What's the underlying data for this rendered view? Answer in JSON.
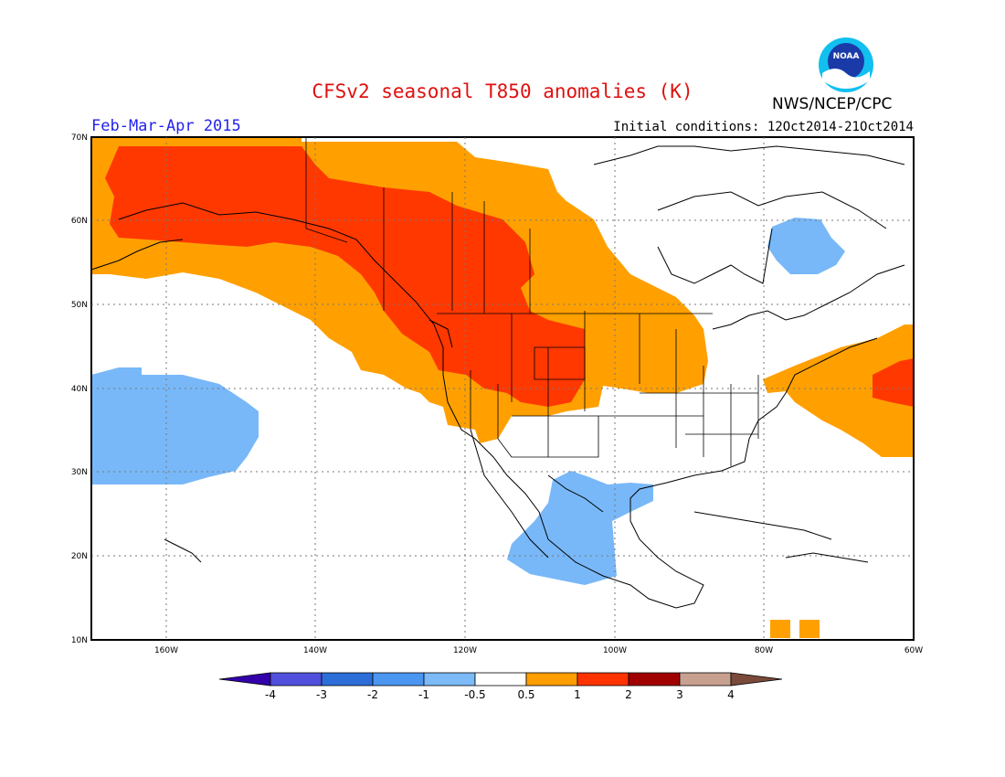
{
  "title": "CFSv2 seasonal T850 anomalies (K)",
  "season": "Feb-Mar-Apr 2015",
  "initial_conditions": "Initial conditions: 12Oct2014-21Oct2014",
  "agency": "NWS/NCEP/CPC",
  "logo_text": "NOAA",
  "lat_labels": [
    "70N",
    "60N",
    "50N",
    "40N",
    "30N",
    "20N",
    "10N"
  ],
  "lon_labels": [
    "160W",
    "140W",
    "120W",
    "100W",
    "80W",
    "60W"
  ],
  "legend": {
    "ticks": [
      "-4",
      "-3",
      "-2",
      "-1",
      "-0.5",
      "0.5",
      "1",
      "2",
      "3",
      "4"
    ],
    "colors": [
      "#3300aa",
      "#5050dd",
      "#2c6ed8",
      "#4b96f0",
      "#7cbaf8",
      "#ffffff",
      "#ff9e00",
      "#ff3300",
      "#a10000",
      "#c8a090",
      "#7a4a3a"
    ]
  },
  "colors": {
    "orange": "#ffa000",
    "red": "#ff3800",
    "lightblue": "#78b8f8"
  }
}
